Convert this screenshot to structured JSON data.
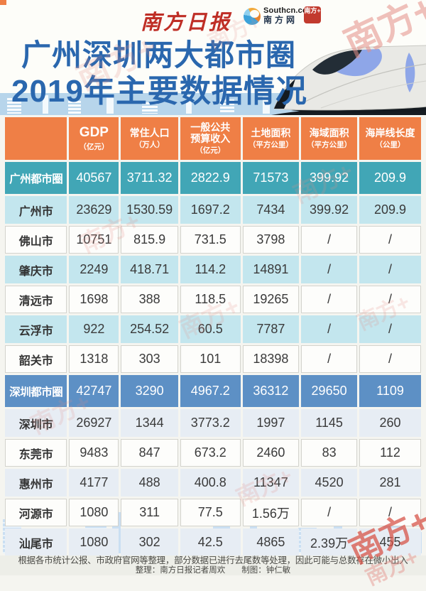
{
  "masthead": {
    "paper_logo": "南方日报",
    "southcn_site": "Southcn.com",
    "southcn_name": "南方网",
    "badge": "南方+"
  },
  "title": {
    "line1": "广州深圳两大都市圈",
    "line2": "2019年主要数据情况"
  },
  "watermark_text": "南方+",
  "chart_data": {
    "type": "table",
    "title": "广州深圳两大都市圈2019年主要数据情况",
    "columns": [
      {
        "label": "",
        "unit": ""
      },
      {
        "label": "GDP",
        "unit": "（亿元）"
      },
      {
        "label": "常住人口",
        "unit": "（万人）"
      },
      {
        "label": "一般公共\n预算收入",
        "unit": "（亿元）"
      },
      {
        "label": "土地面积",
        "unit": "（平方公里）"
      },
      {
        "label": "海域面积",
        "unit": "（平方公里）"
      },
      {
        "label": "海岸线长度",
        "unit": "（公里）"
      }
    ],
    "rows": [
      {
        "name": "广州都市圈",
        "kind": "metro-gz",
        "values": [
          "40567",
          "3711.32",
          "2822.9",
          "71573",
          "399.92",
          "209.9"
        ]
      },
      {
        "name": "广州市",
        "kind": "tint-gz",
        "values": [
          "23629",
          "1530.59",
          "1697.2",
          "7434",
          "399.92",
          "209.9"
        ]
      },
      {
        "name": "佛山市",
        "kind": "plain",
        "values": [
          "10751",
          "815.9",
          "731.5",
          "3798",
          "/",
          "/"
        ]
      },
      {
        "name": "肇庆市",
        "kind": "tint-gz",
        "values": [
          "2249",
          "418.71",
          "114.2",
          "14891",
          "/",
          "/"
        ]
      },
      {
        "name": "清远市",
        "kind": "plain",
        "values": [
          "1698",
          "388",
          "118.5",
          "19265",
          "/",
          "/"
        ]
      },
      {
        "name": "云浮市",
        "kind": "tint-gz",
        "values": [
          "922",
          "254.52",
          "60.5",
          "7787",
          "/",
          "/"
        ]
      },
      {
        "name": "韶关市",
        "kind": "plain",
        "values": [
          "1318",
          "303",
          "101",
          "18398",
          "/",
          "/"
        ]
      },
      {
        "name": "深圳都市圈",
        "kind": "metro-sz",
        "values": [
          "42747",
          "3290",
          "4967.2",
          "36312",
          "29650",
          "1109"
        ]
      },
      {
        "name": "深圳市",
        "kind": "tint-sz",
        "values": [
          "26927",
          "1344",
          "3773.2",
          "1997",
          "1145",
          "260"
        ]
      },
      {
        "name": "东莞市",
        "kind": "plain",
        "values": [
          "9483",
          "847",
          "673.2",
          "2460",
          "83",
          "112"
        ]
      },
      {
        "name": "惠州市",
        "kind": "tint-sz",
        "values": [
          "4177",
          "488",
          "400.8",
          "11347",
          "4520",
          "281"
        ]
      },
      {
        "name": "河源市",
        "kind": "plain",
        "values": [
          "1080",
          "311",
          "77.5",
          "1.56万",
          "/",
          "/"
        ]
      },
      {
        "name": "汕尾市",
        "kind": "tint-sz",
        "values": [
          "1080",
          "302",
          "42.5",
          "4865",
          "2.39万",
          "455"
        ]
      }
    ]
  },
  "footer": {
    "note": "根据各市统计公报、市政府官网等整理，部分数据已进行去尾数等处理，因此可能与总数存在微小出入",
    "credits": "整理：南方日报记者周欢　　制图：钟仁敏"
  },
  "colors": {
    "header_orange": "#ef7f46",
    "guangzhou_metro_teal": "#41a6b6",
    "guangzhou_tint": "#c3e6ee",
    "shenzhen_metro_blue": "#5d90c5",
    "shenzhen_tint": "#e7edf4",
    "title_blue": "#2a67ae",
    "brand_red": "#bf2e26"
  }
}
